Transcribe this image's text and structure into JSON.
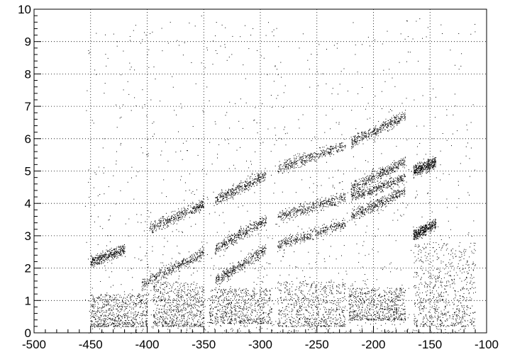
{
  "chart_data": {
    "type": "scatter",
    "title": "",
    "xlabel": "",
    "ylabel": "",
    "xlim": [
      -500,
      -100
    ],
    "ylim": [
      0,
      10
    ],
    "grid": true,
    "grid_style": "dotted",
    "x_ticks": [
      -500,
      -450,
      -400,
      -350,
      -300,
      -250,
      -200,
      -150,
      -100
    ],
    "y_ticks": [
      0,
      1,
      2,
      3,
      4,
      5,
      6,
      7,
      8,
      9,
      10
    ],
    "x_tick_labels": [
      "-500",
      "-450",
      "-400",
      "-350",
      "-300",
      "-250",
      "-200",
      "-150",
      "-100"
    ],
    "y_tick_labels": [
      "0",
      "1",
      "2",
      "3",
      "4",
      "5",
      "6",
      "7",
      "8",
      "9",
      "10"
    ],
    "marker_color": "#000000",
    "bands": [
      {
        "x_range": [
          -405,
          -350
        ],
        "y_start": 1.5,
        "y_end": 2.5
      },
      {
        "x_range": [
          -398,
          -350
        ],
        "y_start": 3.2,
        "y_end": 4.0
      },
      {
        "x_range": [
          -450,
          -420
        ],
        "y_start": 2.2,
        "y_end": 2.6
      },
      {
        "x_range": [
          -340,
          -295
        ],
        "y_start": 1.6,
        "y_end": 2.6
      },
      {
        "x_range": [
          -340,
          -295
        ],
        "y_start": 2.6,
        "y_end": 3.5
      },
      {
        "x_range": [
          -340,
          -295
        ],
        "y_start": 4.1,
        "y_end": 4.9
      },
      {
        "x_range": [
          -285,
          -225
        ],
        "y_start": 2.7,
        "y_end": 3.4
      },
      {
        "x_range": [
          -285,
          -225
        ],
        "y_start": 3.6,
        "y_end": 4.2
      },
      {
        "x_range": [
          -285,
          -225
        ],
        "y_start": 5.1,
        "y_end": 5.8
      },
      {
        "x_range": [
          -220,
          -172
        ],
        "y_start": 3.6,
        "y_end": 4.4
      },
      {
        "x_range": [
          -220,
          -172
        ],
        "y_start": 4.2,
        "y_end": 4.8
      },
      {
        "x_range": [
          -220,
          -172
        ],
        "y_start": 4.5,
        "y_end": 5.3
      },
      {
        "x_range": [
          -220,
          -172
        ],
        "y_start": 5.9,
        "y_end": 6.7
      },
      {
        "x_range": [
          -165,
          -145
        ],
        "y_start": 3.0,
        "y_end": 3.4
      },
      {
        "x_range": [
          -165,
          -145
        ],
        "y_start": 5.0,
        "y_end": 5.3
      }
    ],
    "clusters": [
      {
        "x_range": [
          -450,
          -400
        ],
        "y_range": [
          0.2,
          1.2
        ]
      },
      {
        "x_range": [
          -395,
          -350
        ],
        "y_range": [
          0.2,
          1.6
        ]
      },
      {
        "x_range": [
          -345,
          -290
        ],
        "y_range": [
          0.3,
          1.4
        ]
      },
      {
        "x_range": [
          -285,
          -225
        ],
        "y_range": [
          0.2,
          1.6
        ]
      },
      {
        "x_range": [
          -222,
          -172
        ],
        "y_range": [
          0.4,
          1.4
        ]
      },
      {
        "x_range": [
          -165,
          -110
        ],
        "y_range": [
          0.2,
          2.8
        ]
      }
    ]
  }
}
